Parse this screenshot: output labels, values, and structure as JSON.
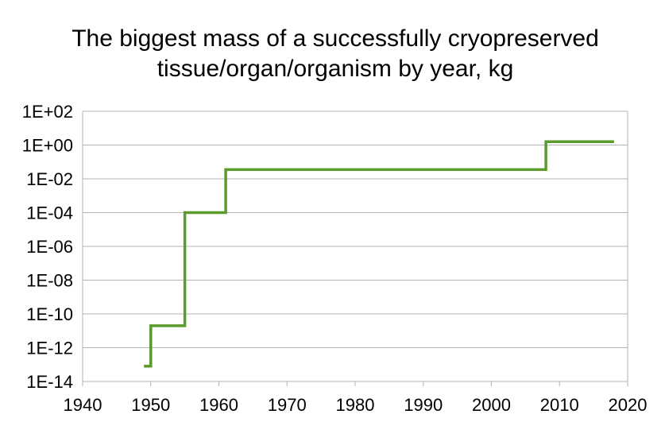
{
  "chart_data": {
    "type": "line",
    "step": true,
    "title": "The biggest mass of a successfully cryopreserved tissue/organ/organism by year, kg",
    "title_lines": [
      "The biggest mass of a successfully cryopreserved",
      "tissue/organ/organism by year, kg"
    ],
    "xlabel": "",
    "ylabel": "",
    "xlim": [
      1940,
      2020
    ],
    "ylim": [
      1e-14,
      100
    ],
    "y_scale": "log",
    "grid": true,
    "legend": "none",
    "x_ticks": [
      "1940",
      "1950",
      "1960",
      "1970",
      "1980",
      "1990",
      "2000",
      "2010",
      "2020"
    ],
    "y_ticks": [
      "1E+02",
      "1E+00",
      "1E-02",
      "1E-04",
      "1E-06",
      "1E-08",
      "1E-10",
      "1E-12",
      "1E-14"
    ],
    "x_tick_values": [
      1940,
      1950,
      1960,
      1970,
      1980,
      1990,
      2000,
      2010,
      2020
    ],
    "y_tick_values": [
      100,
      1,
      0.01,
      0.0001,
      1e-06,
      1e-08,
      1e-10,
      1e-12,
      1e-14
    ],
    "series": [
      {
        "color": "#5b9b2c",
        "points": [
          {
            "x": 1949,
            "y": 8e-14
          },
          {
            "x": 1950,
            "y": 8e-14
          },
          {
            "x": 1950,
            "y": 2e-11
          },
          {
            "x": 1955,
            "y": 2e-11
          },
          {
            "x": 1955,
            "y": 0.0001
          },
          {
            "x": 1961,
            "y": 0.0001
          },
          {
            "x": 1961,
            "y": 0.035
          },
          {
            "x": 2008,
            "y": 0.035
          },
          {
            "x": 2008,
            "y": 1.6
          },
          {
            "x": 2018,
            "y": 1.6
          }
        ]
      }
    ],
    "colors": {
      "grid": "#b3b3b3",
      "axis": "#b3b3b3",
      "text": "#000000"
    }
  }
}
